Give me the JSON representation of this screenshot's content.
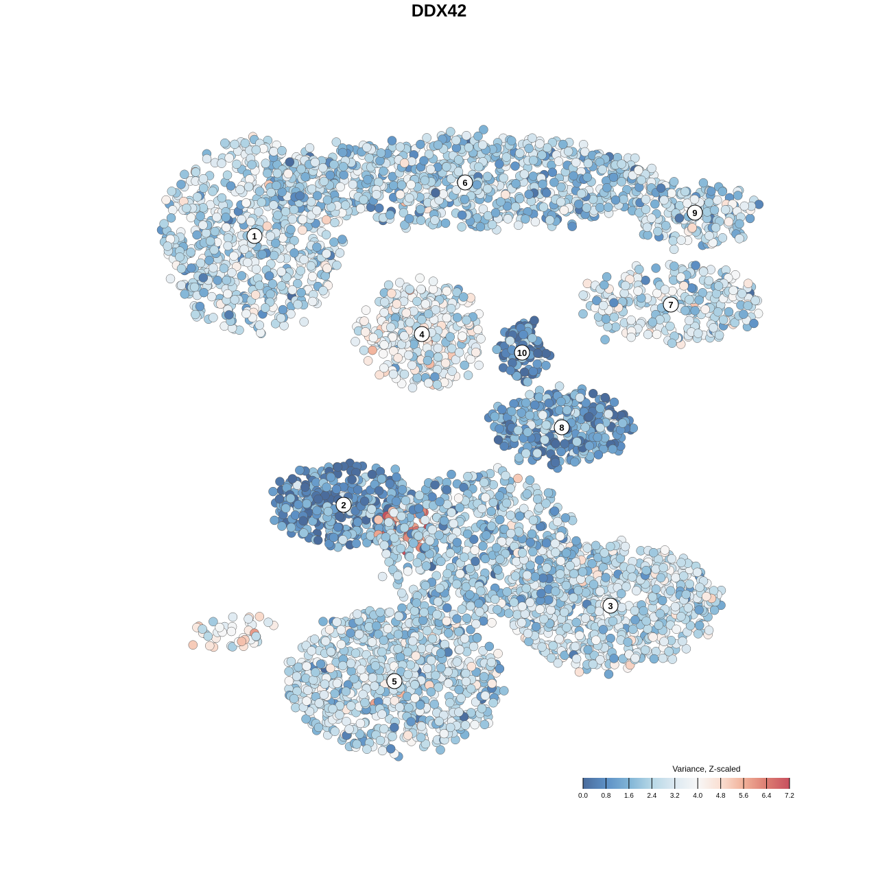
{
  "chart_data": {
    "type": "scatter",
    "title": "DDX42",
    "xlabel": "",
    "ylabel": "",
    "grid": false,
    "axes_visible": false,
    "colorbar": {
      "title": "Variance, Z-scaled",
      "ticks": [
        "0.0",
        "0.8",
        "1.6",
        "2.4",
        "3.2",
        "4.0",
        "4.8",
        "5.6",
        "6.4",
        "7.2"
      ],
      "range": [
        0,
        7.2
      ],
      "colors": [
        "#4a6c9c",
        "#5d90c5",
        "#80b4d6",
        "#b6d7e6",
        "#dde9f1",
        "#f7f7f7",
        "#fadfd2",
        "#f1b199",
        "#dc7c72",
        "#c8505f"
      ],
      "placement": "bottom-right"
    },
    "point_groups_note_free": true,
    "clusters": [
      {
        "label": "1",
        "x": -26.9,
        "y": 29.6,
        "spread": [
          10,
          11
        ],
        "n": 650,
        "mean_value": 2.6
      },
      {
        "label": "6",
        "x": 3.8,
        "y": 37.4,
        "spread": [
          22,
          5
        ],
        "n": 800,
        "mean_value": 2.3
      },
      {
        "label": "9",
        "x": 37.3,
        "y": 33.0,
        "spread": [
          7,
          3.5
        ],
        "n": 160,
        "mean_value": 2.4
      },
      {
        "label": "7",
        "x": 33.8,
        "y": 19.6,
        "spread": [
          10,
          4.5
        ],
        "n": 260,
        "mean_value": 2.8
      },
      {
        "label": "4",
        "x": -2.5,
        "y": 15.3,
        "spread": [
          7,
          6
        ],
        "n": 330,
        "mean_value": 3.4
      },
      {
        "label": "10",
        "x": 12.1,
        "y": 12.6,
        "spread": [
          2.5,
          3.5
        ],
        "n": 90,
        "mean_value": 0.4
      },
      {
        "label": "8",
        "x": 17.9,
        "y": 1.7,
        "spread": [
          8,
          4
        ],
        "n": 300,
        "mean_value": 1.2
      },
      {
        "label": "2",
        "x": -13.9,
        "y": -9.6,
        "spread": [
          8,
          4.5
        ],
        "n": 330,
        "mean_value": 1.0
      },
      {
        "label": "3",
        "x": 25.0,
        "y": -24.3,
        "spread": [
          12,
          7
        ],
        "n": 700,
        "mean_value": 2.8
      },
      {
        "label": "5",
        "x": -6.5,
        "y": -35.3,
        "spread": [
          12,
          8
        ],
        "n": 800,
        "mean_value": 2.6
      }
    ],
    "unlabeled_groups": [
      {
        "x": -4.0,
        "y": -13.0,
        "spread": [
          3.5,
          2.5
        ],
        "n": 50,
        "mean_value": 6.0
      },
      {
        "x": 6.0,
        "y": -16.0,
        "spread": [
          11,
          9
        ],
        "n": 600,
        "mean_value": 2.2
      },
      {
        "x": -30.0,
        "y": -28.0,
        "spread": [
          5,
          2
        ],
        "n": 40,
        "mean_value": 3.8
      }
    ]
  }
}
